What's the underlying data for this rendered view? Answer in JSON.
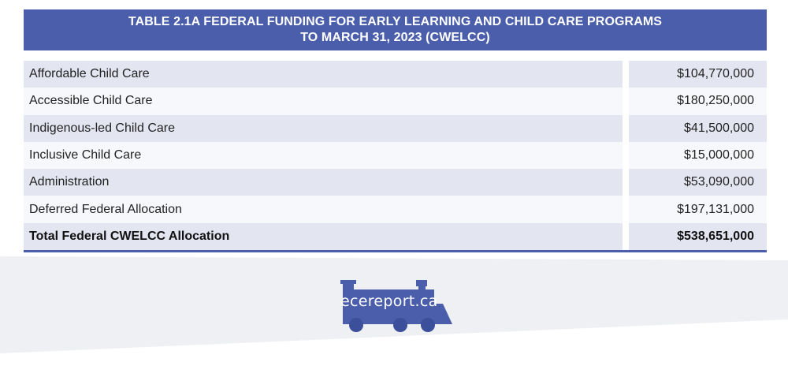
{
  "table": {
    "title_line1": "TABLE 2.1A  FEDERAL FUNDING FOR  EARLY LEARNING AND CHILD CARE PROGRAMS",
    "title_line2": "TO MARCH 31, 2023 (CWELCC)",
    "rows": [
      {
        "label": "Affordable Child Care",
        "value": "$104,770,000"
      },
      {
        "label": "Accessible Child Care",
        "value": "$180,250,000"
      },
      {
        "label": "Indigenous-led Child Care",
        "value": "$41,500,000"
      },
      {
        "label": "Inclusive Child Care",
        "value": "$15,000,000"
      },
      {
        "label": "Administration",
        "value": "$53,090,000"
      },
      {
        "label": "Deferred Federal Allocation",
        "value": "$197,131,000"
      }
    ],
    "total": {
      "label": "Total Federal CWELCC Allocation",
      "value": "$538,651,000"
    }
  },
  "logo": {
    "text": "ecereport.ca",
    "icon": "train-locomotive-icon"
  },
  "colors": {
    "accent": "#4a5eab",
    "row_shade": "#e3e5f1",
    "row_plain": "#f7f8fb",
    "band": "#eef0f4"
  }
}
